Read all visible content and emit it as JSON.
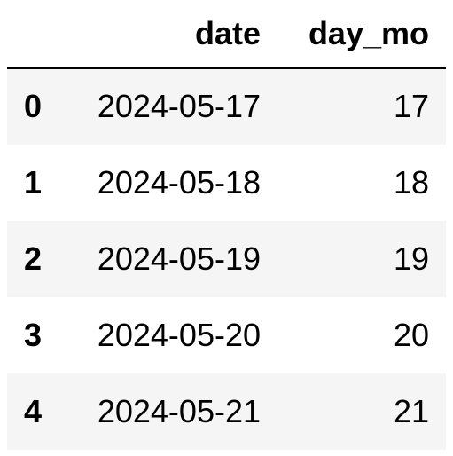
{
  "table": {
    "columns": {
      "index": "",
      "date": "date",
      "day_mo": "day_mo"
    },
    "rows": [
      {
        "index": "0",
        "date": "2024-05-17",
        "day_mo": "17"
      },
      {
        "index": "1",
        "date": "2024-05-18",
        "day_mo": "18"
      },
      {
        "index": "2",
        "date": "2024-05-19",
        "day_mo": "19"
      },
      {
        "index": "3",
        "date": "2024-05-20",
        "day_mo": "20"
      },
      {
        "index": "4",
        "date": "2024-05-21",
        "day_mo": "21"
      }
    ],
    "colors": {
      "stripe": "#f5f5f5",
      "background": "#ffffff",
      "text": "#000000",
      "rule": "#000000"
    }
  }
}
